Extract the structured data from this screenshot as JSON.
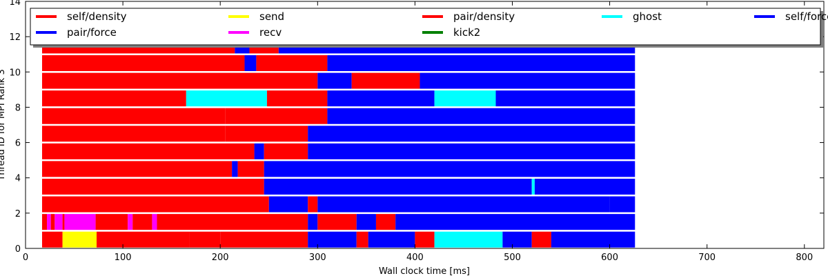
{
  "chart_data": {
    "type": "bar",
    "orientation": "horizontal-timeline",
    "xlabel": "Wall clock time [ms]",
    "ylabel": "Thread ID for MPI Rank 3",
    "xlim": [
      0,
      820
    ],
    "ylim": [
      0,
      14
    ],
    "x_ticks": [
      "0",
      "100",
      "200",
      "300",
      "400",
      "500",
      "600",
      "700",
      "800"
    ],
    "y_ticks": [
      "0",
      "2",
      "4",
      "6",
      "8",
      "10",
      "12",
      "14"
    ],
    "legend_position": "top",
    "series": [
      {
        "name": "self/density",
        "color": "#ff0000"
      },
      {
        "name": "send",
        "color": "#ffff00"
      },
      {
        "name": "pair/density",
        "color": "#ff0000"
      },
      {
        "name": "ghost",
        "color": "#00ffff"
      },
      {
        "name": "self/force",
        "color": "#0000ff"
      },
      {
        "name": "pair/force",
        "color": "#0000ff"
      },
      {
        "name": "recv",
        "color": "#ff00ff"
      },
      {
        "name": "kick2",
        "color": "#008000"
      }
    ],
    "threads": [
      {
        "thread": 0,
        "segments": [
          [
            17,
            38,
            "#ff0000"
          ],
          [
            38,
            73,
            "#ffff00"
          ],
          [
            73,
            168,
            "#ff0000"
          ],
          [
            168,
            200,
            "#ff0000"
          ],
          [
            200,
            290,
            "#ff0000"
          ],
          [
            290,
            340,
            "#0000ff"
          ],
          [
            340,
            352,
            "#ff0000"
          ],
          [
            352,
            400,
            "#0000ff"
          ],
          [
            400,
            420,
            "#ff0000"
          ],
          [
            420,
            490,
            "#00ffff"
          ],
          [
            490,
            520,
            "#0000ff"
          ],
          [
            520,
            540,
            "#ff0000"
          ],
          [
            540,
            626,
            "#0000ff"
          ]
        ]
      },
      {
        "thread": 1,
        "segments": [
          [
            17,
            22,
            "#ff0000"
          ],
          [
            22,
            26,
            "#ff00ff"
          ],
          [
            26,
            30,
            "#ff0000"
          ],
          [
            30,
            38,
            "#ff00ff"
          ],
          [
            38,
            40,
            "#ff0000"
          ],
          [
            40,
            72,
            "#ff00ff"
          ],
          [
            72,
            105,
            "#ff0000"
          ],
          [
            105,
            110,
            "#ff00ff"
          ],
          [
            110,
            130,
            "#ff0000"
          ],
          [
            130,
            135,
            "#ff00ff"
          ],
          [
            135,
            290,
            "#ff0000"
          ],
          [
            290,
            300,
            "#0000ff"
          ],
          [
            300,
            340,
            "#ff0000"
          ],
          [
            340,
            360,
            "#0000ff"
          ],
          [
            360,
            380,
            "#ff0000"
          ],
          [
            380,
            626,
            "#0000ff"
          ]
        ]
      },
      {
        "thread": 2,
        "segments": [
          [
            17,
            250,
            "#ff0000"
          ],
          [
            250,
            290,
            "#0000ff"
          ],
          [
            290,
            300,
            "#ff0000"
          ],
          [
            300,
            600,
            "#0000ff"
          ],
          [
            600,
            626,
            "#0000ff"
          ]
        ]
      },
      {
        "thread": 3,
        "segments": [
          [
            17,
            245,
            "#ff0000"
          ],
          [
            245,
            520,
            "#0000ff"
          ],
          [
            520,
            523,
            "#00ffff"
          ],
          [
            523,
            626,
            "#0000ff"
          ]
        ]
      },
      {
        "thread": 4,
        "segments": [
          [
            17,
            212,
            "#ff0000"
          ],
          [
            212,
            218,
            "#0000ff"
          ],
          [
            218,
            245,
            "#ff0000"
          ],
          [
            245,
            626,
            "#0000ff"
          ]
        ]
      },
      {
        "thread": 5,
        "segments": [
          [
            17,
            235,
            "#ff0000"
          ],
          [
            235,
            245,
            "#0000ff"
          ],
          [
            245,
            290,
            "#ff0000"
          ],
          [
            290,
            626,
            "#0000ff"
          ]
        ]
      },
      {
        "thread": 6,
        "segments": [
          [
            17,
            205,
            "#ff0000"
          ],
          [
            205,
            290,
            "#ff0000"
          ],
          [
            290,
            626,
            "#0000ff"
          ]
        ]
      },
      {
        "thread": 7,
        "segments": [
          [
            17,
            205,
            "#ff0000"
          ],
          [
            205,
            310,
            "#ff0000"
          ],
          [
            310,
            626,
            "#0000ff"
          ]
        ]
      },
      {
        "thread": 8,
        "segments": [
          [
            17,
            165,
            "#ff0000"
          ],
          [
            165,
            248,
            "#00ffff"
          ],
          [
            248,
            310,
            "#ff0000"
          ],
          [
            310,
            420,
            "#0000ff"
          ],
          [
            420,
            483,
            "#00ffff"
          ],
          [
            483,
            626,
            "#0000ff"
          ]
        ]
      },
      {
        "thread": 9,
        "segments": [
          [
            17,
            300,
            "#ff0000"
          ],
          [
            300,
            335,
            "#0000ff"
          ],
          [
            335,
            405,
            "#ff0000"
          ],
          [
            405,
            626,
            "#0000ff"
          ]
        ]
      },
      {
        "thread": 10,
        "segments": [
          [
            17,
            225,
            "#ff0000"
          ],
          [
            225,
            237,
            "#0000ff"
          ],
          [
            237,
            310,
            "#ff0000"
          ],
          [
            310,
            626,
            "#0000ff"
          ]
        ]
      },
      {
        "thread": 11,
        "segments": [
          [
            17,
            215,
            "#ff0000"
          ],
          [
            215,
            230,
            "#0000ff"
          ],
          [
            230,
            260,
            "#ff0000"
          ],
          [
            260,
            626,
            "#0000ff"
          ]
        ]
      }
    ]
  }
}
